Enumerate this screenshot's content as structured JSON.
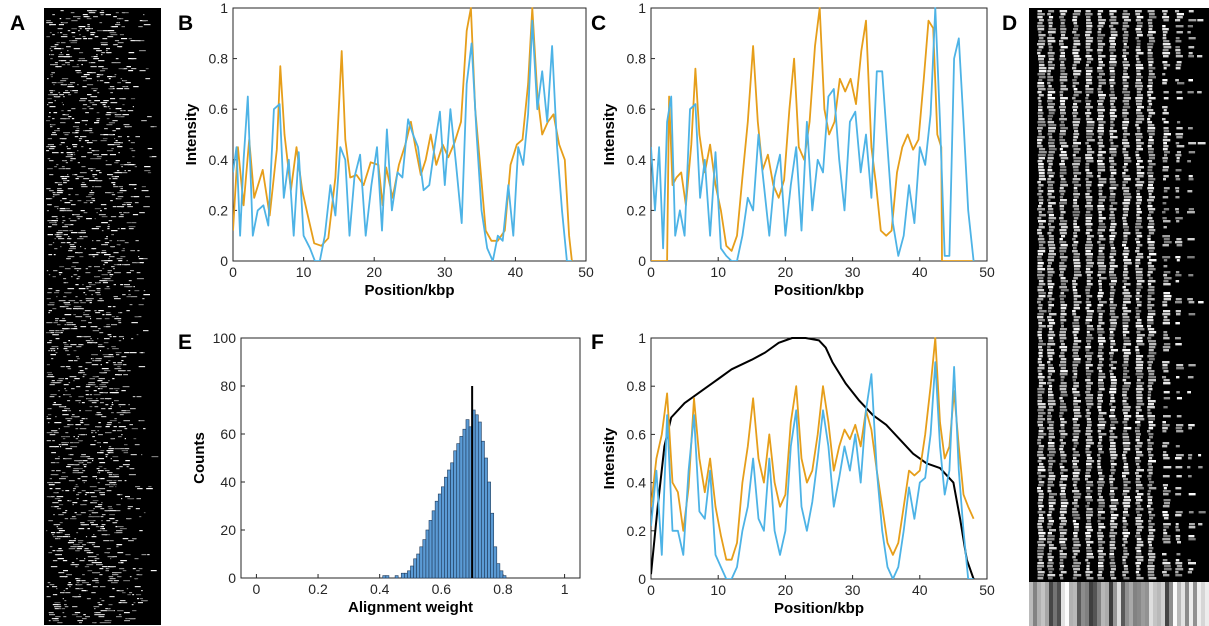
{
  "colors": {
    "blue": "#4DB3E6",
    "orange": "#E69E1A",
    "black": "#000000",
    "bar_fill": "#5B9BD5",
    "bar_edge": "#1F3A5A"
  },
  "panel_letters": {
    "A": "A",
    "B": "B",
    "C": "C",
    "D": "D",
    "E": "E",
    "F": "F"
  },
  "chart_data": [
    {
      "panel": "B",
      "type": "line",
      "xlabel": "Position/kbp",
      "ylabel": "Intensity",
      "xlim": [
        0,
        50
      ],
      "ylim": [
        0,
        1
      ],
      "xticks": [
        0,
        10,
        20,
        30,
        40,
        50
      ],
      "yticks": [
        0,
        0.2,
        0.4,
        0.6,
        0.8,
        1
      ],
      "grid": false,
      "series": [
        {
          "color": "#E69E1A",
          "x": [
            0,
            0.7,
            1.5,
            2.3,
            3,
            4.2,
            5.2,
            6.2,
            6.7,
            7.3,
            8.2,
            9,
            9.8,
            10.6,
            11.5,
            12.5,
            13.5,
            14.5,
            15.4,
            15.9,
            16.6,
            17.5,
            18.5,
            19.5,
            20.6,
            21.2,
            21.7,
            22.6,
            23.5,
            24.4,
            25.2,
            25.9,
            26.6,
            27.3,
            28,
            28.8,
            29.7,
            30.5,
            31.4,
            32.3,
            33.1,
            33.7,
            34.3,
            35,
            35.8,
            36.6,
            37.5,
            38.5,
            39.3,
            40.2,
            41,
            41.8,
            42.4,
            43.1,
            43.8,
            44.6,
            45.4,
            46.2,
            47,
            47.6,
            48
          ],
          "y": [
            0.12,
            0.45,
            0.22,
            0.48,
            0.25,
            0.36,
            0.18,
            0.44,
            0.77,
            0.5,
            0.28,
            0.45,
            0.28,
            0.18,
            0.07,
            0.06,
            0.09,
            0.33,
            0.83,
            0.48,
            0.33,
            0.34,
            0.3,
            0.39,
            0.38,
            0.22,
            0.37,
            0.25,
            0.38,
            0.46,
            0.55,
            0.44,
            0.34,
            0.4,
            0.5,
            0.38,
            0.46,
            0.41,
            0.47,
            0.55,
            0.91,
            1.0,
            0.6,
            0.38,
            0.12,
            0.08,
            0.08,
            0.12,
            0.38,
            0.46,
            0.48,
            0.7,
            1.0,
            0.66,
            0.5,
            0.55,
            0.58,
            0.46,
            0.4,
            0.1,
            0.0
          ]
        },
        {
          "color": "#4DB3E6",
          "x": [
            0,
            0.5,
            1,
            1.5,
            2.1,
            2.8,
            3.5,
            4.3,
            5,
            5.8,
            6.6,
            7.2,
            7.9,
            8.6,
            9.3,
            10,
            10.9,
            11.6,
            12.3,
            13,
            13.8,
            14.5,
            15.2,
            15.9,
            16.5,
            17.2,
            18,
            18.8,
            19.6,
            20.4,
            21.1,
            21.8,
            22.5,
            23.3,
            24,
            24.8,
            25.5,
            26.2,
            27,
            27.8,
            28.6,
            29.3,
            30,
            30.8,
            31.6,
            32.4,
            33.1,
            33.8,
            34.5,
            35.2,
            36,
            36.8,
            37.5,
            38.2,
            39,
            39.7,
            40.4,
            41.1,
            41.8,
            42.4,
            43.1,
            43.8,
            44.5,
            45.2,
            45.9,
            46.6,
            47.3,
            48
          ],
          "y": [
            0.35,
            0.45,
            0.1,
            0.4,
            0.65,
            0.1,
            0.2,
            0.22,
            0.14,
            0.6,
            0.62,
            0.25,
            0.4,
            0.1,
            0.43,
            0.1,
            0.05,
            0.0,
            0.0,
            0.1,
            0.3,
            0.18,
            0.45,
            0.4,
            0.1,
            0.33,
            0.42,
            0.1,
            0.3,
            0.45,
            0.12,
            0.52,
            0.2,
            0.35,
            0.33,
            0.56,
            0.5,
            0.45,
            0.28,
            0.3,
            0.46,
            0.59,
            0.3,
            0.6,
            0.38,
            0.15,
            0.7,
            0.86,
            0.5,
            0.2,
            0.05,
            0.0,
            0.1,
            0.08,
            0.3,
            0.1,
            0.45,
            0.38,
            0.58,
            0.95,
            0.6,
            0.75,
            0.55,
            0.85,
            0.45,
            0.2,
            0.0,
            0.0
          ]
        }
      ]
    },
    {
      "panel": "C",
      "type": "line",
      "xlabel": "Position/kbp",
      "ylabel": "Intensity",
      "xlim": [
        0,
        50
      ],
      "ylim": [
        0,
        1
      ],
      "xticks": [
        0,
        10,
        20,
        30,
        40,
        50
      ],
      "yticks": [
        0,
        0.2,
        0.4,
        0.6,
        0.8,
        1
      ],
      "grid": false,
      "series": [
        {
          "color": "#E69E1A",
          "x": [
            0,
            2.4,
            2.7,
            3.2,
            3.8,
            4.5,
            5.2,
            6,
            6.6,
            7.2,
            8,
            8.8,
            9.6,
            10.4,
            11.2,
            12,
            12.8,
            13.6,
            14.4,
            15.2,
            15.9,
            16.6,
            17.4,
            18.2,
            19,
            19.8,
            20.6,
            21.3,
            22,
            22.8,
            23.6,
            24.4,
            25.1,
            25.8,
            26.5,
            27.3,
            28.1,
            28.9,
            29.7,
            30.5,
            31.3,
            32,
            32.8,
            33.5,
            34.2,
            35,
            35.8,
            36.6,
            37.4,
            38.2,
            39,
            39.8,
            40.6,
            41.3,
            42,
            42.6,
            43.2,
            43.3,
            48
          ],
          "y": [
            0,
            0,
            0.65,
            0.3,
            0.33,
            0.35,
            0.22,
            0.46,
            0.76,
            0.5,
            0.35,
            0.46,
            0.3,
            0.2,
            0.06,
            0.04,
            0.1,
            0.33,
            0.55,
            0.85,
            0.55,
            0.36,
            0.42,
            0.3,
            0.25,
            0.32,
            0.6,
            0.8,
            0.45,
            0.4,
            0.55,
            0.85,
            1.0,
            0.6,
            0.5,
            0.55,
            0.72,
            0.67,
            0.72,
            0.62,
            0.83,
            0.95,
            0.45,
            0.3,
            0.12,
            0.1,
            0.12,
            0.35,
            0.45,
            0.5,
            0.44,
            0.48,
            0.72,
            0.95,
            0.92,
            0.5,
            0.45,
            0,
            0
          ]
        },
        {
          "color": "#4DB3E6",
          "x": [
            0,
            0.6,
            1.2,
            1.8,
            2.4,
            3,
            3.6,
            4.3,
            5,
            5.8,
            6.6,
            7.3,
            8,
            8.8,
            9.6,
            10.4,
            11.2,
            12,
            12.8,
            13.6,
            14.4,
            15.2,
            16,
            16.8,
            17.6,
            18.4,
            19.2,
            20,
            20.8,
            21.6,
            22.4,
            23.2,
            24,
            24.8,
            25.6,
            26.4,
            27.2,
            28,
            28.8,
            29.6,
            30.4,
            31.2,
            32,
            32.8,
            33.6,
            34.4,
            35.2,
            36,
            36.8,
            37.6,
            38.4,
            39.2,
            40,
            40.8,
            41.6,
            42.3,
            43,
            43.7,
            44.4,
            45.1,
            45.8,
            46.5,
            47.2,
            48
          ],
          "y": [
            0.45,
            0.2,
            0.45,
            0.05,
            0.55,
            0.65,
            0.1,
            0.2,
            0.1,
            0.6,
            0.62,
            0.25,
            0.4,
            0.1,
            0.43,
            0.05,
            0.02,
            0.0,
            0.0,
            0.1,
            0.25,
            0.2,
            0.5,
            0.3,
            0.1,
            0.33,
            0.42,
            0.1,
            0.3,
            0.45,
            0.12,
            0.55,
            0.2,
            0.4,
            0.35,
            0.65,
            0.68,
            0.4,
            0.2,
            0.55,
            0.59,
            0.35,
            0.5,
            0.25,
            0.75,
            0.75,
            0.45,
            0.15,
            0.02,
            0.1,
            0.3,
            0.15,
            0.45,
            0.38,
            0.58,
            1.0,
            0.55,
            0.02,
            0.02,
            0.8,
            0.88,
            0.55,
            0.2,
            0.0
          ]
        }
      ]
    },
    {
      "panel": "E",
      "type": "bar",
      "xlabel": "Alignment weight",
      "ylabel": "Counts",
      "xlim": [
        -0.05,
        1.05
      ],
      "ylim": [
        0,
        100
      ],
      "xticks": [
        0,
        0.2,
        0.4,
        0.6,
        0.8,
        1
      ],
      "yticks": [
        0,
        20,
        40,
        60,
        80,
        100
      ],
      "grid": false,
      "bin_width": 0.01,
      "bin_start": [
        0.41,
        0.42,
        0.43,
        0.44,
        0.45,
        0.46,
        0.47,
        0.48,
        0.49,
        0.5,
        0.51,
        0.52,
        0.53,
        0.54,
        0.55,
        0.56,
        0.57,
        0.58,
        0.59,
        0.6,
        0.61,
        0.62,
        0.63,
        0.64,
        0.65,
        0.66,
        0.67,
        0.68,
        0.69,
        0.7,
        0.71,
        0.72,
        0.73,
        0.74,
        0.75,
        0.76,
        0.77,
        0.78,
        0.79,
        0.8
      ],
      "counts": [
        1,
        1,
        0,
        0,
        1,
        0,
        2,
        2,
        3,
        5,
        8,
        10,
        13,
        16,
        20,
        24,
        28,
        32,
        35,
        38,
        42,
        45,
        48,
        53,
        56,
        59,
        62,
        66,
        63,
        70,
        68,
        65,
        57,
        50,
        40,
        27,
        13,
        6,
        3,
        1
      ],
      "marker_line_x": 0.7,
      "marker_line_top": 80
    },
    {
      "panel": "F",
      "type": "line",
      "xlabel": "Position/kbp",
      "ylabel": "Intensity",
      "xlim": [
        0,
        50
      ],
      "ylim": [
        0,
        1
      ],
      "xticks": [
        0,
        10,
        20,
        30,
        40,
        50
      ],
      "yticks": [
        0,
        0.2,
        0.4,
        0.6,
        0.8,
        1
      ],
      "grid": false,
      "series": [
        {
          "color": "#000000",
          "x": [
            0,
            1,
            2,
            3,
            5,
            8,
            10,
            12,
            15,
            17,
            19,
            21,
            23,
            25,
            26,
            27,
            29,
            31,
            33,
            35,
            37,
            39,
            41,
            43,
            45,
            46,
            47,
            48
          ],
          "y": [
            0.02,
            0.3,
            0.55,
            0.67,
            0.73,
            0.79,
            0.83,
            0.87,
            0.91,
            0.94,
            0.98,
            1.0,
            1.0,
            0.99,
            0.96,
            0.9,
            0.81,
            0.74,
            0.68,
            0.64,
            0.58,
            0.52,
            0.48,
            0.46,
            0.4,
            0.25,
            0.08,
            0.0
          ]
        },
        {
          "color": "#E69E1A",
          "x": [
            0,
            0.8,
            1.6,
            2.4,
            3.2,
            4,
            4.8,
            5.6,
            6.4,
            7.2,
            8,
            8.8,
            9.6,
            10.4,
            11.2,
            12,
            12.8,
            13.6,
            14.4,
            15.2,
            16,
            16.8,
            17.6,
            18.4,
            19.2,
            20,
            20.8,
            21.6,
            22.4,
            23.2,
            24,
            24.8,
            25.6,
            26.4,
            27.2,
            28,
            28.8,
            29.6,
            30.4,
            31.2,
            32,
            32.8,
            33.6,
            34.4,
            35.2,
            36,
            36.8,
            37.6,
            38.4,
            39.2,
            40,
            40.8,
            41.6,
            42.3,
            43,
            43.7,
            44.4,
            45.1,
            45.8,
            46.5,
            47.2,
            48
          ],
          "y": [
            0.3,
            0.5,
            0.6,
            0.77,
            0.4,
            0.36,
            0.2,
            0.38,
            0.75,
            0.5,
            0.36,
            0.5,
            0.3,
            0.18,
            0.08,
            0.08,
            0.15,
            0.4,
            0.55,
            0.75,
            0.5,
            0.4,
            0.6,
            0.4,
            0.3,
            0.35,
            0.65,
            0.8,
            0.5,
            0.4,
            0.45,
            0.6,
            0.8,
            0.65,
            0.45,
            0.55,
            0.62,
            0.58,
            0.64,
            0.55,
            0.7,
            0.62,
            0.45,
            0.3,
            0.15,
            0.1,
            0.15,
            0.3,
            0.45,
            0.43,
            0.45,
            0.6,
            0.8,
            1.0,
            0.65,
            0.5,
            0.55,
            0.78,
            0.55,
            0.35,
            0.3,
            0.25
          ]
        },
        {
          "color": "#4DB3E6",
          "x": [
            0,
            0.8,
            1.6,
            2.4,
            3.2,
            4,
            4.8,
            5.6,
            6.4,
            7.2,
            8,
            8.8,
            9.6,
            10.4,
            11.2,
            12,
            12.8,
            13.6,
            14.4,
            15.2,
            16,
            16.8,
            17.6,
            18.4,
            19.2,
            20,
            20.8,
            21.6,
            22.4,
            23.2,
            24,
            24.8,
            25.6,
            26.4,
            27.2,
            28,
            28.8,
            29.6,
            30.4,
            31.2,
            32,
            32.8,
            33.6,
            34.4,
            35.2,
            36,
            36.8,
            37.6,
            38.4,
            39.2,
            40,
            40.8,
            41.6,
            42.3,
            43,
            43.7,
            44.4,
            45.1,
            45.8,
            46.5,
            47.2,
            48
          ],
          "y": [
            0.22,
            0.45,
            0.1,
            0.68,
            0.2,
            0.2,
            0.1,
            0.45,
            0.68,
            0.28,
            0.25,
            0.45,
            0.1,
            0.05,
            0.0,
            0.0,
            0.05,
            0.2,
            0.3,
            0.5,
            0.25,
            0.2,
            0.5,
            0.2,
            0.1,
            0.2,
            0.55,
            0.7,
            0.3,
            0.2,
            0.32,
            0.5,
            0.7,
            0.55,
            0.3,
            0.42,
            0.55,
            0.45,
            0.6,
            0.4,
            0.7,
            0.85,
            0.45,
            0.2,
            0.05,
            0.0,
            0.05,
            0.2,
            0.38,
            0.25,
            0.4,
            0.42,
            0.6,
            0.9,
            0.55,
            0.35,
            0.45,
            0.88,
            0.45,
            0.2,
            0.0,
            0.0
          ]
        }
      ]
    }
  ]
}
